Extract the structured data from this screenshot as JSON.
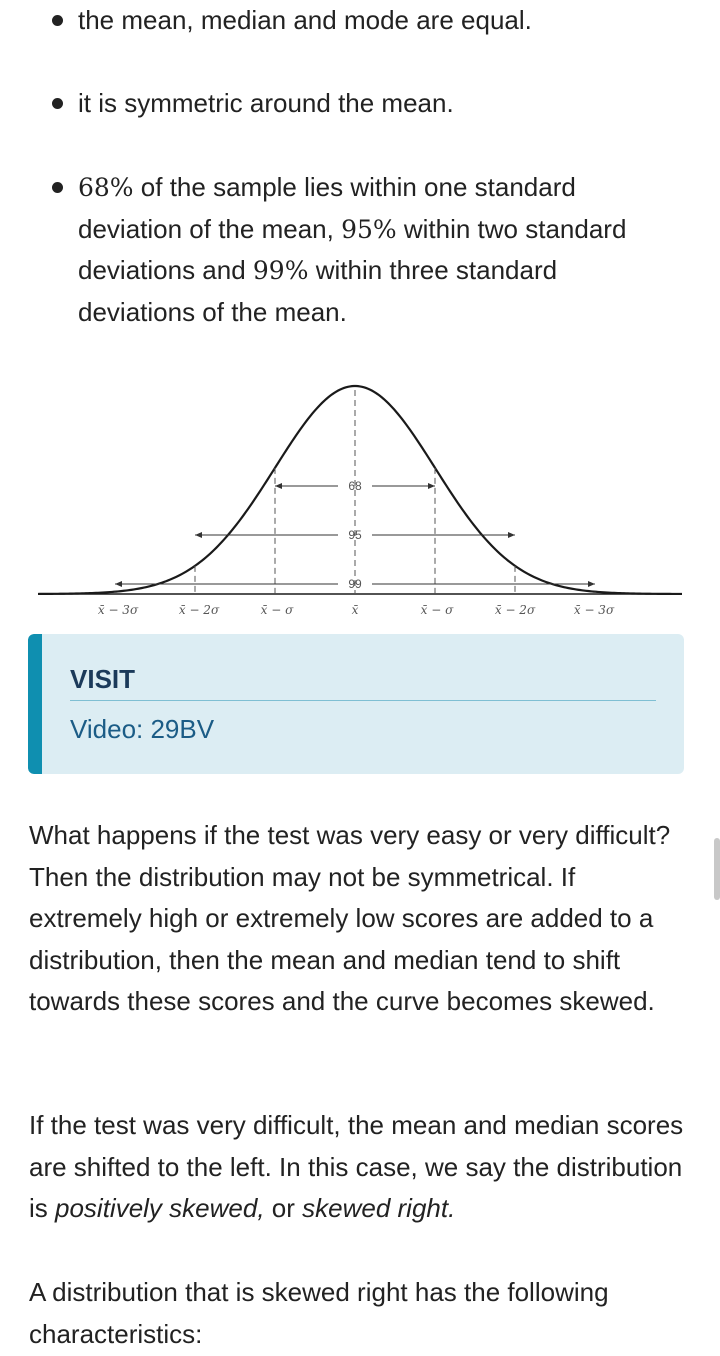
{
  "bullets": [
    {
      "text": "the mean, median and mode are equal."
    },
    {
      "text": "it is symmetric around the mean."
    },
    {
      "p68": "68%",
      "t1": " of the sample lies within one standard",
      "t2": "deviation of the mean, ",
      "p95": "95%",
      "t3": " within two standard",
      "t4": "deviations and ",
      "p99": "99%",
      "t5": " within three standard",
      "t6": "deviations of the mean."
    }
  ],
  "figure": {
    "tick_labels": [
      "x̄ − 3σ",
      "x̄ − 2σ",
      "x̄ − σ",
      "x̄",
      "x̄ − σ",
      "x̄ − 2σ",
      "x̄ − 3σ"
    ],
    "percent_labels": [
      "68",
      "95",
      "99"
    ],
    "colors": {
      "curve": "#1a1a1a",
      "dashes": "#555555",
      "label": "#555555"
    }
  },
  "visit": {
    "title": "VISIT",
    "link": "Video: 29BV",
    "colors": {
      "background": "#dcedf3",
      "accent": "#0f8fb0"
    }
  },
  "paragraphs": {
    "p1": "What happens if the test was very easy or very difficult? Then the distribution may not be symmetrical. If extremely high or extremely low scores are added to a distribution, then the mean and median tend to shift towards these scores and the curve becomes skewed.",
    "p2_a": "If the test was very difficult, the mean and median scores are shifted to the left. In this case, we say the distribution is ",
    "p2_em1": "positively skewed,",
    "p2_b": " or ",
    "p2_em2": "skewed right.",
    "p3": "A distribution that is skewed right has the following characteristics:"
  }
}
